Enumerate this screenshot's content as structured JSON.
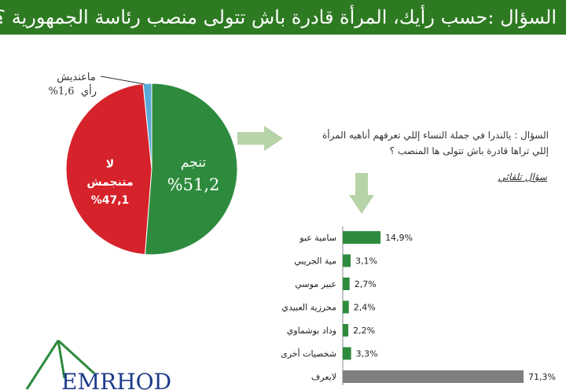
{
  "title": "السؤال :حسب رأيك، المرأة قادرة باش تتولى منصب رئاسة الجمهورية ؟",
  "chart_data": [
    {
      "type": "pie",
      "slices": [
        {
          "label_line1": "تنجم",
          "value_text": "%51,2",
          "value": 51.2,
          "color": "#2e8b3e"
        },
        {
          "label_line1": "لا",
          "label_line2": "متنجمش",
          "value_text": "%47,1",
          "value": 47.1,
          "color": "#d6222a"
        },
        {
          "label_line1": "ماعنديش",
          "label_line2": "رأي",
          "value_text": "%1,6",
          "value": 1.6,
          "color": "#59a9d6"
        }
      ]
    },
    {
      "type": "bar",
      "orientation": "horizontal",
      "categories": [
        "سامية عبو",
        "مية الجريبي",
        "عبير موسي",
        "محرزية العبيدي",
        "وداد بوشماوي",
        "شخصيات أخرى",
        "لايعرف"
      ],
      "values": [
        14.9,
        3.1,
        2.7,
        2.4,
        2.2,
        3.3,
        71.3
      ],
      "value_labels": [
        "14,9%",
        "3,1%",
        "2,7%",
        "2,4%",
        "2,2%",
        "3,3%",
        "71,3%"
      ],
      "colors": [
        "#2e8b3e",
        "#2e8b3e",
        "#2e8b3e",
        "#2e8b3e",
        "#2e8b3e",
        "#2e8b3e",
        "#7f7f7f"
      ]
    }
  ],
  "question2": {
    "line1": "السؤال : يالندرا في جملة النساء إللي تعرفهم أناهيه المرأة",
    "line2": "إللي تراها قادرة باش تتولى ها المنصب ؟",
    "source_note": "سؤال تلقائي"
  },
  "logo": {
    "text": "EMRHOD"
  },
  "colors": {
    "title_bg": "#2e7a22",
    "arrow": "#b7d3a8"
  }
}
